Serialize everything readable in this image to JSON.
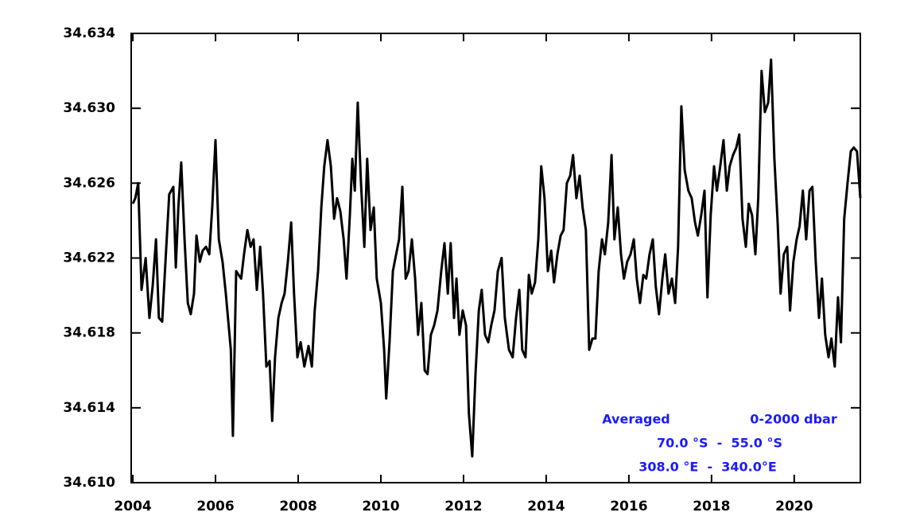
{
  "chart_data": {
    "type": "line",
    "annotations": [
      "Averaged",
      "0-2000 dbar",
      "70.0 °S  -  55.0 °S",
      "308.0 °E  -  340.0°E"
    ],
    "annotation_color": "#1a1aff",
    "color": "#000000",
    "xlim": [
      2003.96,
      2021.6
    ],
    "xticks": [
      2004,
      2006,
      2008,
      2010,
      2012,
      2014,
      2016,
      2018,
      2020
    ],
    "ylim": [
      34.61,
      34.634
    ],
    "yticks": [
      {
        "value": 34.61,
        "label": "34.610"
      },
      34.614,
      34.618,
      34.622,
      34.626,
      {
        "value": 34.63,
        "label": "34.630"
      },
      34.634
    ],
    "x": [
      2004.0,
      2004.06,
      2004.13,
      2004.21,
      2004.31,
      2004.4,
      2004.48,
      2004.56,
      2004.63,
      2004.71,
      2004.79,
      2004.88,
      2004.98,
      2005.04,
      2005.1,
      2005.17,
      2005.25,
      2005.33,
      2005.4,
      2005.48,
      2005.54,
      2005.62,
      2005.69,
      2005.77,
      2005.85,
      2005.92,
      2006.0,
      2006.08,
      2006.17,
      2006.25,
      2006.37,
      2006.42,
      2006.5,
      2006.62,
      2006.69,
      2006.77,
      2006.85,
      2006.92,
      2007.0,
      2007.08,
      2007.15,
      2007.23,
      2007.31,
      2007.37,
      2007.44,
      2007.52,
      2007.6,
      2007.67,
      2007.75,
      2007.83,
      2007.9,
      2007.98,
      2008.06,
      2008.15,
      2008.25,
      2008.33,
      2008.4,
      2008.48,
      2008.56,
      2008.63,
      2008.71,
      2008.79,
      2008.87,
      2008.94,
      2009.02,
      2009.1,
      2009.17,
      2009.25,
      2009.31,
      2009.37,
      2009.44,
      2009.52,
      2009.6,
      2009.67,
      2009.75,
      2009.83,
      2009.9,
      2010.0,
      2010.08,
      2010.13,
      2010.21,
      2010.29,
      2010.37,
      2010.44,
      2010.52,
      2010.6,
      2010.67,
      2010.75,
      2010.83,
      2010.9,
      2010.98,
      2011.06,
      2011.13,
      2011.21,
      2011.29,
      2011.37,
      2011.46,
      2011.54,
      2011.62,
      2011.69,
      2011.77,
      2011.83,
      2011.9,
      2011.98,
      2012.06,
      2012.13,
      2012.21,
      2012.29,
      2012.37,
      2012.44,
      2012.52,
      2012.6,
      2012.67,
      2012.75,
      2012.83,
      2012.92,
      2013.0,
      2013.1,
      2013.19,
      2013.27,
      2013.35,
      2013.42,
      2013.5,
      2013.58,
      2013.65,
      2013.73,
      2013.81,
      2013.88,
      2013.96,
      2014.04,
      2014.12,
      2014.19,
      2014.27,
      2014.35,
      2014.42,
      2014.5,
      2014.58,
      2014.65,
      2014.73,
      2014.81,
      2014.88,
      2014.96,
      2015.04,
      2015.12,
      2015.19,
      2015.27,
      2015.35,
      2015.42,
      2015.5,
      2015.58,
      2015.65,
      2015.73,
      2015.81,
      2015.88,
      2015.96,
      2016.04,
      2016.12,
      2016.19,
      2016.27,
      2016.35,
      2016.42,
      2016.5,
      2016.58,
      2016.65,
      2016.73,
      2016.81,
      2016.88,
      2016.96,
      2017.04,
      2017.12,
      2017.19,
      2017.27,
      2017.35,
      2017.44,
      2017.52,
      2017.6,
      2017.67,
      2017.75,
      2017.83,
      2017.9,
      2017.98,
      2018.06,
      2018.13,
      2018.21,
      2018.29,
      2018.37,
      2018.44,
      2018.52,
      2018.6,
      2018.67,
      2018.75,
      2018.83,
      2018.9,
      2018.98,
      2019.06,
      2019.13,
      2019.21,
      2019.29,
      2019.37,
      2019.44,
      2019.52,
      2019.6,
      2019.67,
      2019.75,
      2019.83,
      2019.9,
      2019.98,
      2020.06,
      2020.13,
      2020.21,
      2020.29,
      2020.37,
      2020.44,
      2020.52,
      2020.6,
      2020.67,
      2020.75,
      2020.83,
      2020.9,
      2020.98,
      2021.06,
      2021.13,
      2021.21,
      2021.29,
      2021.37,
      2021.44,
      2021.52,
      2021.6
    ],
    "values": [
      34.6249,
      34.6252,
      34.626,
      34.6203,
      34.622,
      34.6188,
      34.6205,
      34.623,
      34.6188,
      34.6186,
      34.6218,
      34.6254,
      34.6258,
      34.6215,
      34.6247,
      34.6271,
      34.623,
      34.6196,
      34.619,
      34.6201,
      34.6232,
      34.6218,
      34.6224,
      34.6226,
      34.6222,
      34.6247,
      34.6283,
      34.623,
      34.6218,
      34.6201,
      34.6171,
      34.6125,
      34.6213,
      34.6209,
      34.6222,
      34.6235,
      34.6226,
      34.623,
      34.6203,
      34.6226,
      34.6201,
      34.6162,
      34.6165,
      34.6133,
      34.6167,
      34.6188,
      34.6196,
      34.6201,
      34.6218,
      34.6239,
      34.6201,
      34.6167,
      34.6175,
      34.6162,
      34.6173,
      34.6162,
      34.6192,
      34.6213,
      34.6247,
      34.6269,
      34.6283,
      34.6269,
      34.6241,
      34.6252,
      34.6245,
      34.623,
      34.6209,
      34.6243,
      34.6273,
      34.6256,
      34.6303,
      34.626,
      34.6226,
      34.6273,
      34.6235,
      34.6247,
      34.6209,
      34.6196,
      34.6171,
      34.6145,
      34.6175,
      34.6213,
      34.6222,
      34.623,
      34.6258,
      34.6209,
      34.6213,
      34.623,
      34.6209,
      34.6179,
      34.6196,
      34.616,
      34.6158,
      34.6179,
      34.6184,
      34.6192,
      34.6213,
      34.6228,
      34.6201,
      34.6228,
      34.6188,
      34.6209,
      34.6179,
      34.6192,
      34.6184,
      34.6137,
      34.6114,
      34.6158,
      34.6192,
      34.6203,
      34.6179,
      34.6175,
      34.6184,
      34.6192,
      34.6213,
      34.622,
      34.6188,
      34.6171,
      34.6167,
      34.6188,
      34.6203,
      34.6171,
      34.6167,
      34.6211,
      34.6201,
      34.6207,
      34.623,
      34.6269,
      34.6252,
      34.6213,
      34.6224,
      34.6207,
      34.6222,
      34.6232,
      34.6235,
      34.626,
      34.6264,
      34.6275,
      34.6252,
      34.6264,
      34.6247,
      34.6235,
      34.6171,
      34.6177,
      34.6177,
      34.6213,
      34.623,
      34.6222,
      34.6239,
      34.6275,
      34.623,
      34.6247,
      34.6222,
      34.6209,
      34.6218,
      34.6222,
      34.623,
      34.6209,
      34.6196,
      34.6211,
      34.6209,
      34.6222,
      34.623,
      34.6205,
      34.619,
      34.6209,
      34.6222,
      34.6201,
      34.6209,
      34.6196,
      34.6226,
      34.6301,
      34.6267,
      34.6256,
      34.6252,
      34.6239,
      34.6232,
      34.6243,
      34.6256,
      34.6199,
      34.6243,
      34.6269,
      34.6256,
      34.6269,
      34.6283,
      34.6256,
      34.6269,
      34.6275,
      34.6279,
      34.6286,
      34.6241,
      34.6226,
      34.6249,
      34.6243,
      34.6222,
      34.6252,
      34.632,
      34.6298,
      34.6303,
      34.6326,
      34.6273,
      34.6239,
      34.6201,
      34.6222,
      34.6226,
      34.6192,
      34.6218,
      34.623,
      34.6237,
      34.6256,
      34.623,
      34.6256,
      34.6258,
      34.6218,
      34.6188,
      34.6209,
      34.6179,
      34.6167,
      34.6177,
      34.6162,
      34.6199,
      34.6175,
      34.6241,
      34.626,
      34.6277,
      34.6279,
      34.6277,
      34.6252
    ]
  }
}
